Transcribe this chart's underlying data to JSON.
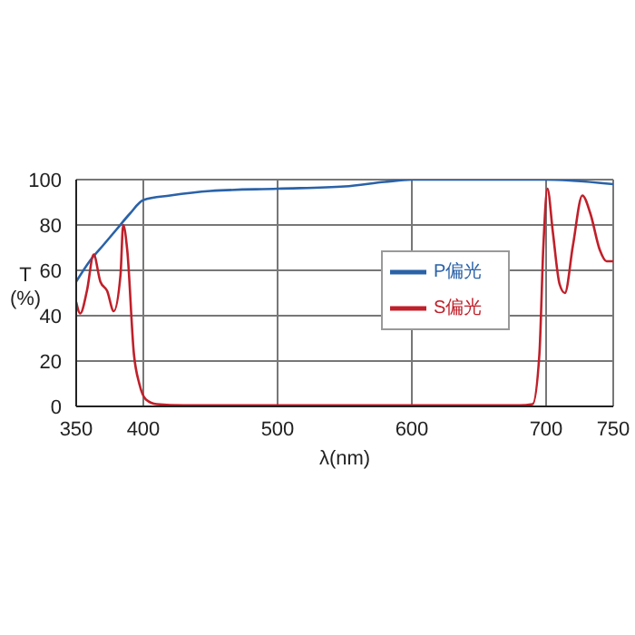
{
  "chart_data": {
    "type": "line",
    "xlabel": "λ(nm)",
    "ylabel": "T (%)",
    "xlim": [
      350,
      750
    ],
    "xticks": [
      350,
      400,
      500,
      600,
      700,
      750
    ],
    "ylim": [
      0,
      100
    ],
    "yticks": [
      0,
      20,
      40,
      60,
      80,
      100
    ],
    "grid": true,
    "legend": "center",
    "marker": "none",
    "line_style": "solid",
    "series": [
      {
        "name": "P偏光",
        "color": "#2a62a8",
        "x": [
          350,
          360,
          370,
          380,
          390,
          400,
          420,
          450,
          500,
          550,
          580,
          600,
          650,
          700,
          720,
          750
        ],
        "values": [
          55,
          64,
          71,
          78,
          85,
          91,
          93,
          95,
          96,
          97,
          99,
          100,
          100,
          100,
          99.5,
          98
        ]
      },
      {
        "name": "S偏光",
        "color": "#c0202a",
        "x": [
          350,
          353,
          358,
          363,
          368,
          373,
          378,
          383,
          385,
          388,
          393,
          397,
          402,
          410,
          430,
          500,
          600,
          680,
          690,
          695,
          698,
          701,
          705,
          710,
          714,
          720,
          727,
          733,
          740,
          745,
          750
        ],
        "values": [
          46,
          41,
          51,
          67,
          55,
          51,
          42,
          58,
          80,
          69,
          23,
          10,
          3,
          1,
          0.5,
          0.5,
          0.5,
          0.5,
          1,
          23,
          71,
          96,
          77,
          54,
          50,
          71,
          93,
          85,
          69,
          64,
          64
        ]
      }
    ]
  }
}
